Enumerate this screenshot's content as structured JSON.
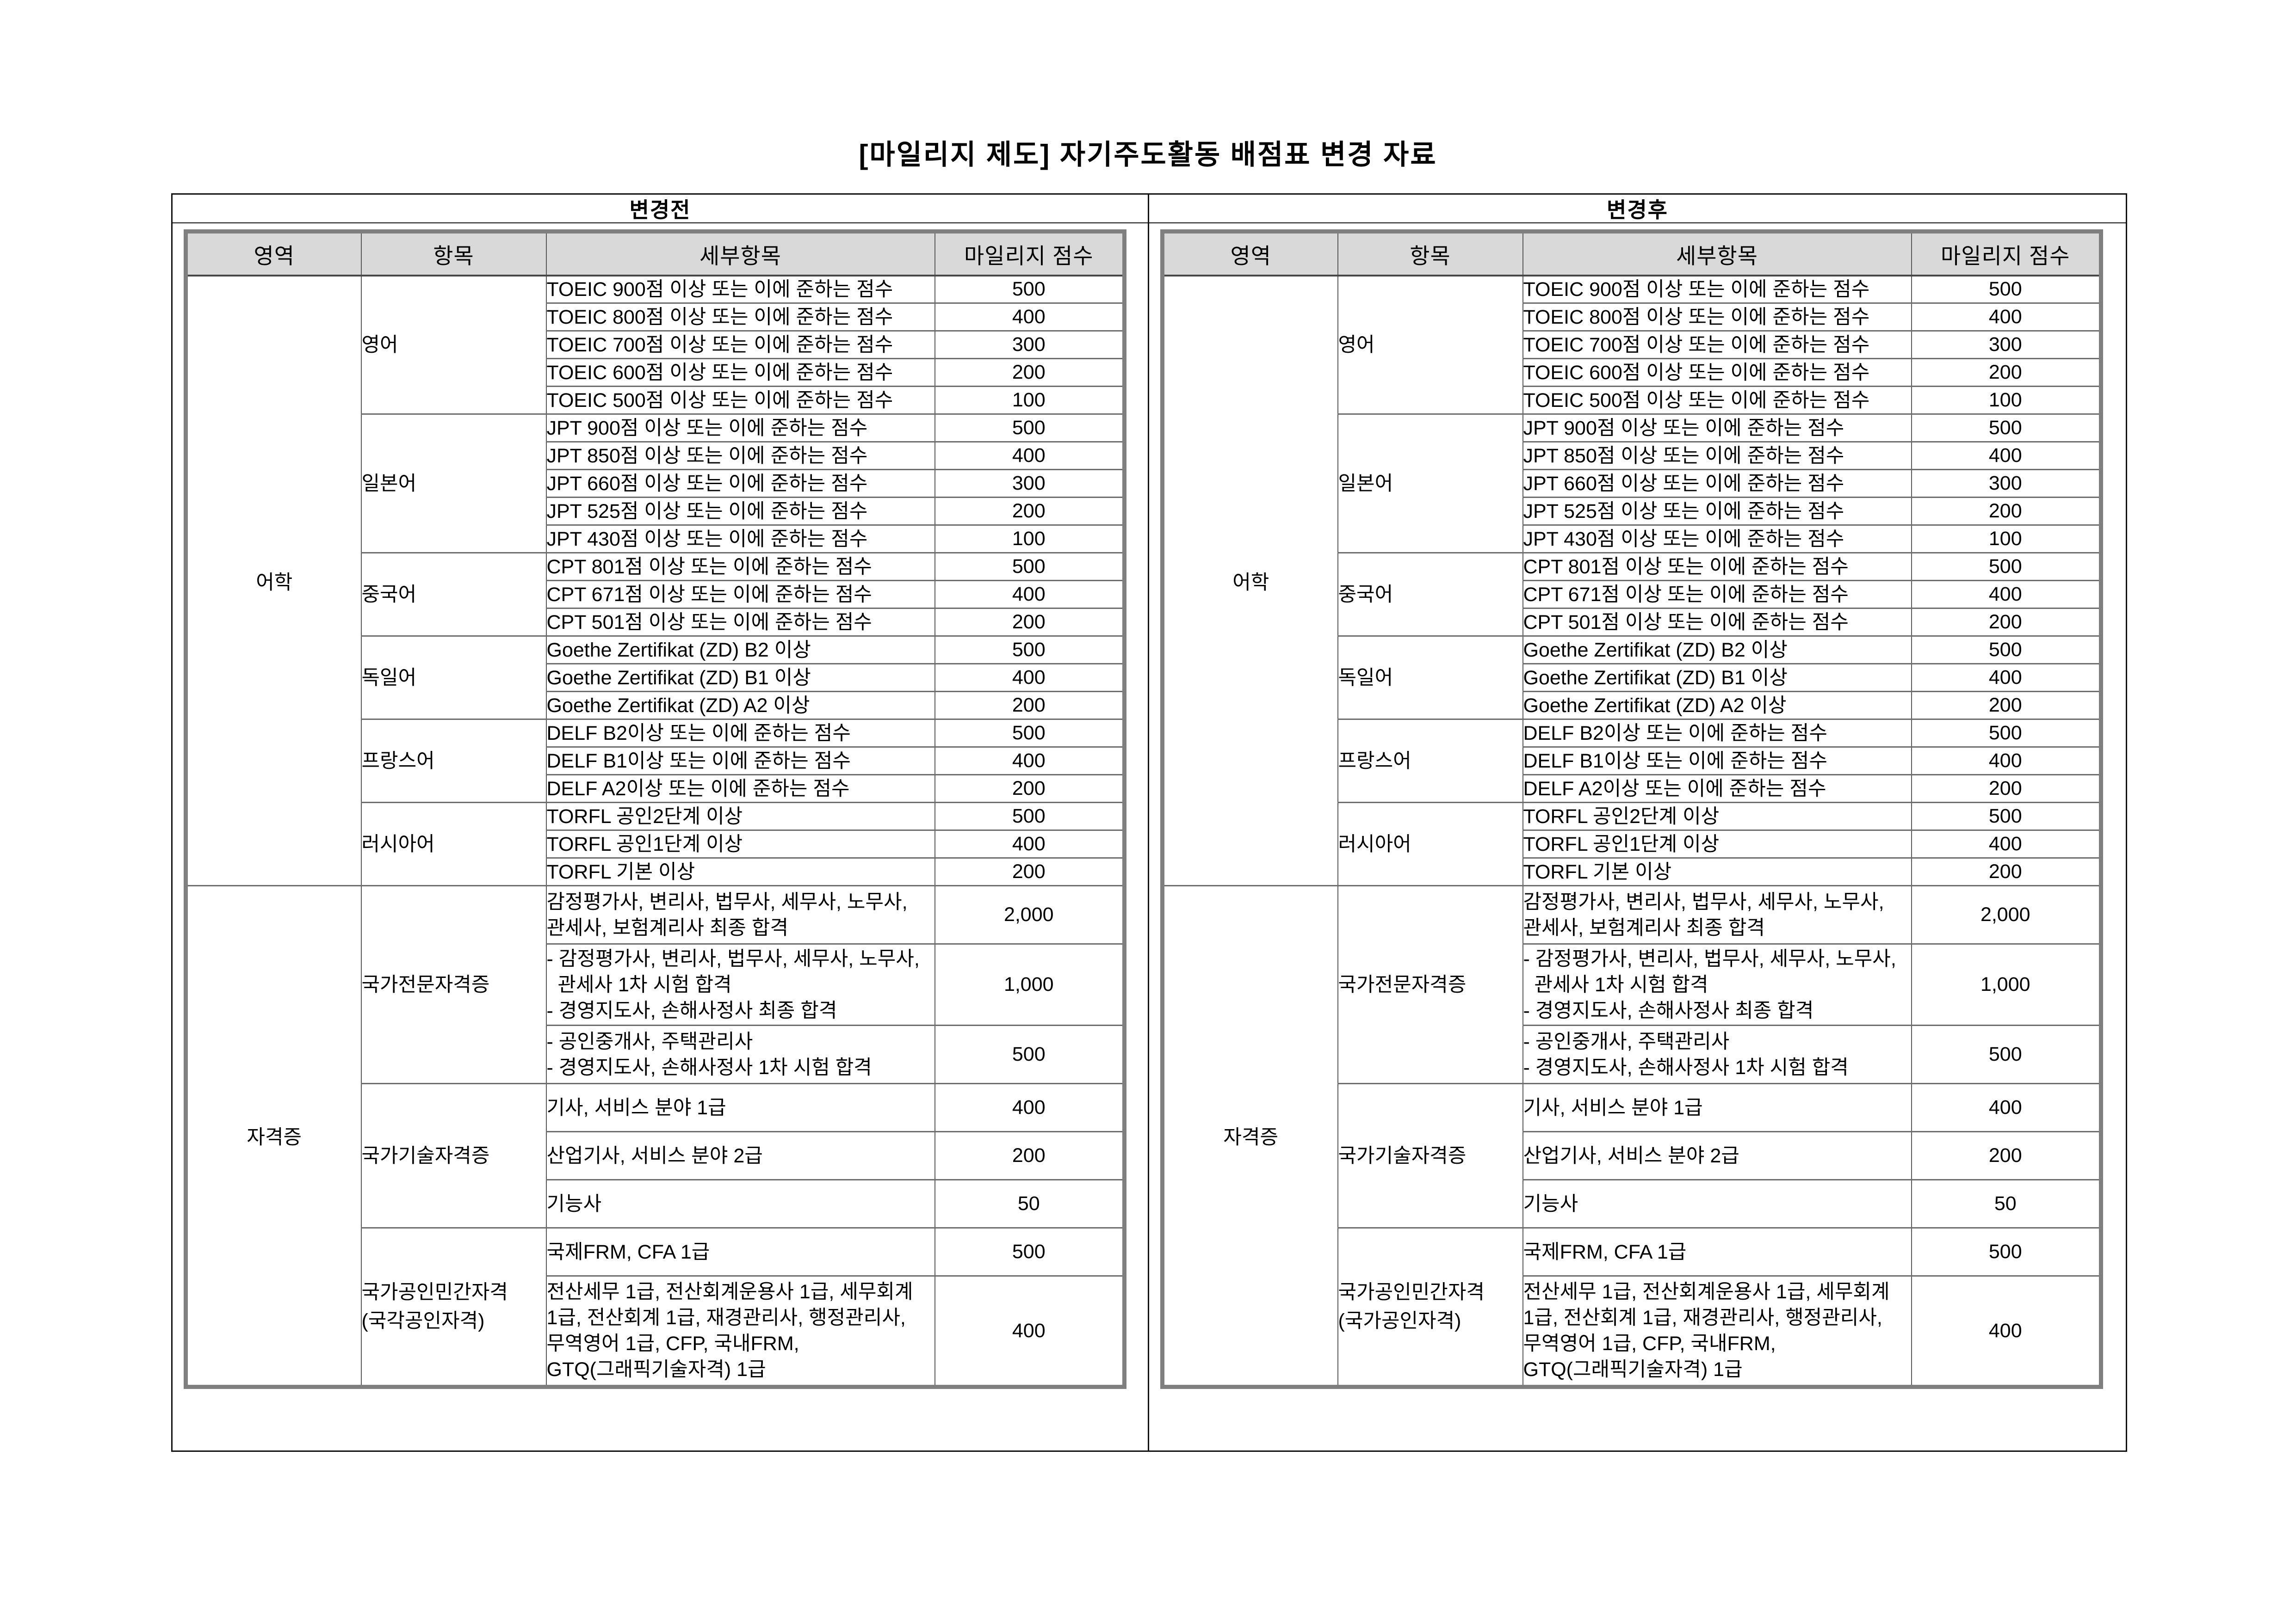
{
  "title": "[마일리지 제도] 자기주도활동 배점표 변경 자료",
  "colors": {
    "header_bg": "#d9d9d9",
    "table_outer_border": "#7f7f7f",
    "grid_line": "#5a5a5a",
    "frame_line": "#111111"
  },
  "tables": [
    {
      "caption": "변경전",
      "columns": [
        "영역",
        "항목",
        "세부항목",
        "마일리지 점수"
      ],
      "groups": [
        {
          "area": "어학",
          "items": [
            {
              "label_lines": [
                "영어"
              ],
              "rows": [
                {
                  "text": "TOEIC 900점 이상 또는 이에 준하는 점수",
                  "score": "500"
                },
                {
                  "text": "TOEIC 800점 이상 또는 이에 준하는 점수",
                  "score": "400"
                },
                {
                  "text": "TOEIC 700점 이상 또는 이에 준하는 점수",
                  "score": "300"
                },
                {
                  "text": "TOEIC 600점 이상 또는 이에 준하는 점수",
                  "score": "200"
                },
                {
                  "text": "TOEIC 500점 이상 또는 이에 준하는 점수",
                  "score": "100"
                }
              ]
            },
            {
              "label_lines": [
                "일본어"
              ],
              "rows": [
                {
                  "text": "JPT 900점 이상 또는 이에 준하는 점수",
                  "score": "500"
                },
                {
                  "text": "JPT 850점 이상 또는 이에 준하는 점수",
                  "score": "400"
                },
                {
                  "text": "JPT 660점 이상 또는 이에 준하는 점수",
                  "score": "300"
                },
                {
                  "text": "JPT 525점 이상 또는 이에 준하는 점수",
                  "score": "200"
                },
                {
                  "text": "JPT 430점 이상 또는 이에 준하는 점수",
                  "score": "100"
                }
              ]
            },
            {
              "label_lines": [
                "중국어"
              ],
              "rows": [
                {
                  "text": "CPT 801점 이상 또는 이에 준하는 점수",
                  "score": "500"
                },
                {
                  "text": "CPT 671점 이상 또는 이에 준하는 점수",
                  "score": "400"
                },
                {
                  "text": "CPT 501점 이상 또는 이에 준하는 점수",
                  "score": "200"
                }
              ]
            },
            {
              "label_lines": [
                "독일어"
              ],
              "rows": [
                {
                  "text": "Goethe Zertifikat (ZD) B2 이상",
                  "score": "500"
                },
                {
                  "text": "Goethe Zertifikat (ZD) B1 이상",
                  "score": "400"
                },
                {
                  "text": "Goethe Zertifikat (ZD) A2 이상",
                  "score": "200"
                }
              ]
            },
            {
              "label_lines": [
                "프랑스어"
              ],
              "rows": [
                {
                  "text": "DELF B2이상 또는 이에 준하는 점수",
                  "score": "500"
                },
                {
                  "text": "DELF B1이상 또는 이에 준하는 점수",
                  "score": "400"
                },
                {
                  "text": "DELF A2이상 또는 이에 준하는 점수",
                  "score": "200"
                }
              ]
            },
            {
              "label_lines": [
                "러시아어"
              ],
              "rows": [
                {
                  "text": "TORFL 공인2단계 이상",
                  "score": "500"
                },
                {
                  "text": "TORFL 공인1단계 이상",
                  "score": "400"
                },
                {
                  "text": "TORFL 기본 이상",
                  "score": "200"
                }
              ]
            }
          ]
        },
        {
          "area": "자격증",
          "items": [
            {
              "label_lines": [
                "국가전문자격증"
              ],
              "rows": [
                {
                  "lines": [
                    "감정평가사, 변리사, 법무사, 세무사, 노무사,",
                    "관세사, 보험계리사 최종 합격"
                  ],
                  "score": "2,000"
                },
                {
                  "lines": [
                    "- 감정평가사, 변리사, 법무사, 세무사, 노무사,",
                    "  관세사 1차 시험 합격",
                    "- 경영지도사, 손해사정사 최종 합격"
                  ],
                  "score": "1,000"
                },
                {
                  "lines": [
                    "- 공인중개사, 주택관리사",
                    "- 경영지도사, 손해사정사 1차 시험 합격"
                  ],
                  "score": "500"
                }
              ]
            },
            {
              "label_lines": [
                "국가기술자격증"
              ],
              "rows": [
                {
                  "text": "기사, 서비스 분야 1급",
                  "score": "400"
                },
                {
                  "text": "산업기사, 서비스 분야 2급",
                  "score": "200"
                },
                {
                  "text": "기능사",
                  "score": "50"
                }
              ]
            },
            {
              "label_lines": [
                "국가공인민간자격",
                "(국각공인자격)"
              ],
              "rows": [
                {
                  "text": "국제FRM, CFA 1급",
                  "score": "500"
                },
                {
                  "lines": [
                    "전산세무 1급, 전산회계운용사 1급, 세무회계",
                    "1급, 전산회계 1급, 재경관리사, 행정관리사,",
                    "무역영어 1급, CFP, 국내FRM,",
                    "GTQ(그래픽기술자격) 1급"
                  ],
                  "score": "400"
                }
              ]
            }
          ]
        }
      ]
    },
    {
      "caption": "변경후",
      "columns": [
        "영역",
        "항목",
        "세부항목",
        "마일리지 점수"
      ],
      "groups": [
        {
          "area": "어학",
          "items": [
            {
              "label_lines": [
                "영어"
              ],
              "rows": [
                {
                  "text": "TOEIC 900점 이상 또는 이에 준하는 점수",
                  "score": "500"
                },
                {
                  "text": "TOEIC 800점 이상 또는 이에 준하는 점수",
                  "score": "400"
                },
                {
                  "text": "TOEIC 700점 이상 또는 이에 준하는 점수",
                  "score": "300"
                },
                {
                  "text": "TOEIC 600점 이상 또는 이에 준하는 점수",
                  "score": "200"
                },
                {
                  "text": "TOEIC 500점 이상 또는 이에 준하는 점수",
                  "score": "100"
                }
              ]
            },
            {
              "label_lines": [
                "일본어"
              ],
              "rows": [
                {
                  "text": "JPT 900점 이상 또는 이에 준하는 점수",
                  "score": "500"
                },
                {
                  "text": "JPT 850점 이상 또는 이에 준하는 점수",
                  "score": "400"
                },
                {
                  "text": "JPT 660점 이상 또는 이에 준하는 점수",
                  "score": "300"
                },
                {
                  "text": "JPT 525점 이상 또는 이에 준하는 점수",
                  "score": "200"
                },
                {
                  "text": "JPT 430점 이상 또는 이에 준하는 점수",
                  "score": "100"
                }
              ]
            },
            {
              "label_lines": [
                "중국어"
              ],
              "rows": [
                {
                  "text": "CPT 801점 이상 또는 이에 준하는 점수",
                  "score": "500"
                },
                {
                  "text": "CPT 671점 이상 또는 이에 준하는 점수",
                  "score": "400"
                },
                {
                  "text": "CPT 501점 이상 또는 이에 준하는 점수",
                  "score": "200"
                }
              ]
            },
            {
              "label_lines": [
                "독일어"
              ],
              "rows": [
                {
                  "text": "Goethe Zertifikat (ZD) B2 이상",
                  "score": "500"
                },
                {
                  "text": "Goethe Zertifikat (ZD) B1 이상",
                  "score": "400"
                },
                {
                  "text": "Goethe Zertifikat (ZD) A2 이상",
                  "score": "200"
                }
              ]
            },
            {
              "label_lines": [
                "프랑스어"
              ],
              "rows": [
                {
                  "text": "DELF B2이상 또는 이에 준하는 점수",
                  "score": "500"
                },
                {
                  "text": "DELF B1이상 또는 이에 준하는 점수",
                  "score": "400"
                },
                {
                  "text": "DELF A2이상 또는 이에 준하는 점수",
                  "score": "200"
                }
              ]
            },
            {
              "label_lines": [
                "러시아어"
              ],
              "rows": [
                {
                  "text": "TORFL 공인2단계 이상",
                  "score": "500"
                },
                {
                  "text": "TORFL 공인1단계 이상",
                  "score": "400"
                },
                {
                  "text": "TORFL 기본 이상",
                  "score": "200"
                }
              ]
            }
          ]
        },
        {
          "area": "자격증",
          "items": [
            {
              "label_lines": [
                "국가전문자격증"
              ],
              "rows": [
                {
                  "lines": [
                    "감정평가사, 변리사, 법무사, 세무사, 노무사,",
                    "관세사, 보험계리사 최종 합격"
                  ],
                  "score": "2,000"
                },
                {
                  "lines": [
                    "- 감정평가사, 변리사, 법무사, 세무사, 노무사,",
                    "  관세사 1차 시험 합격",
                    "- 경영지도사, 손해사정사 최종 합격"
                  ],
                  "score": "1,000"
                },
                {
                  "lines": [
                    "- 공인중개사, 주택관리사",
                    "- 경영지도사, 손해사정사 1차 시험 합격"
                  ],
                  "score": "500"
                }
              ]
            },
            {
              "label_lines": [
                "국가기술자격증"
              ],
              "rows": [
                {
                  "text": "기사, 서비스 분야 1급",
                  "score": "400"
                },
                {
                  "text": "산업기사, 서비스 분야 2급",
                  "score": "200"
                },
                {
                  "text": "기능사",
                  "score": "50"
                }
              ]
            },
            {
              "label_lines": [
                "국가공인민간자격",
                "(국가공인자격)"
              ],
              "rows": [
                {
                  "text": "국제FRM, CFA 1급",
                  "score": "500"
                },
                {
                  "lines": [
                    "전산세무 1급, 전산회계운용사 1급, 세무회계",
                    "1급, 전산회계 1급, 재경관리사, 행정관리사,",
                    "무역영어 1급, CFP, 국내FRM,",
                    "GTQ(그래픽기술자격) 1급"
                  ],
                  "score": "400"
                }
              ]
            }
          ]
        }
      ]
    }
  ]
}
